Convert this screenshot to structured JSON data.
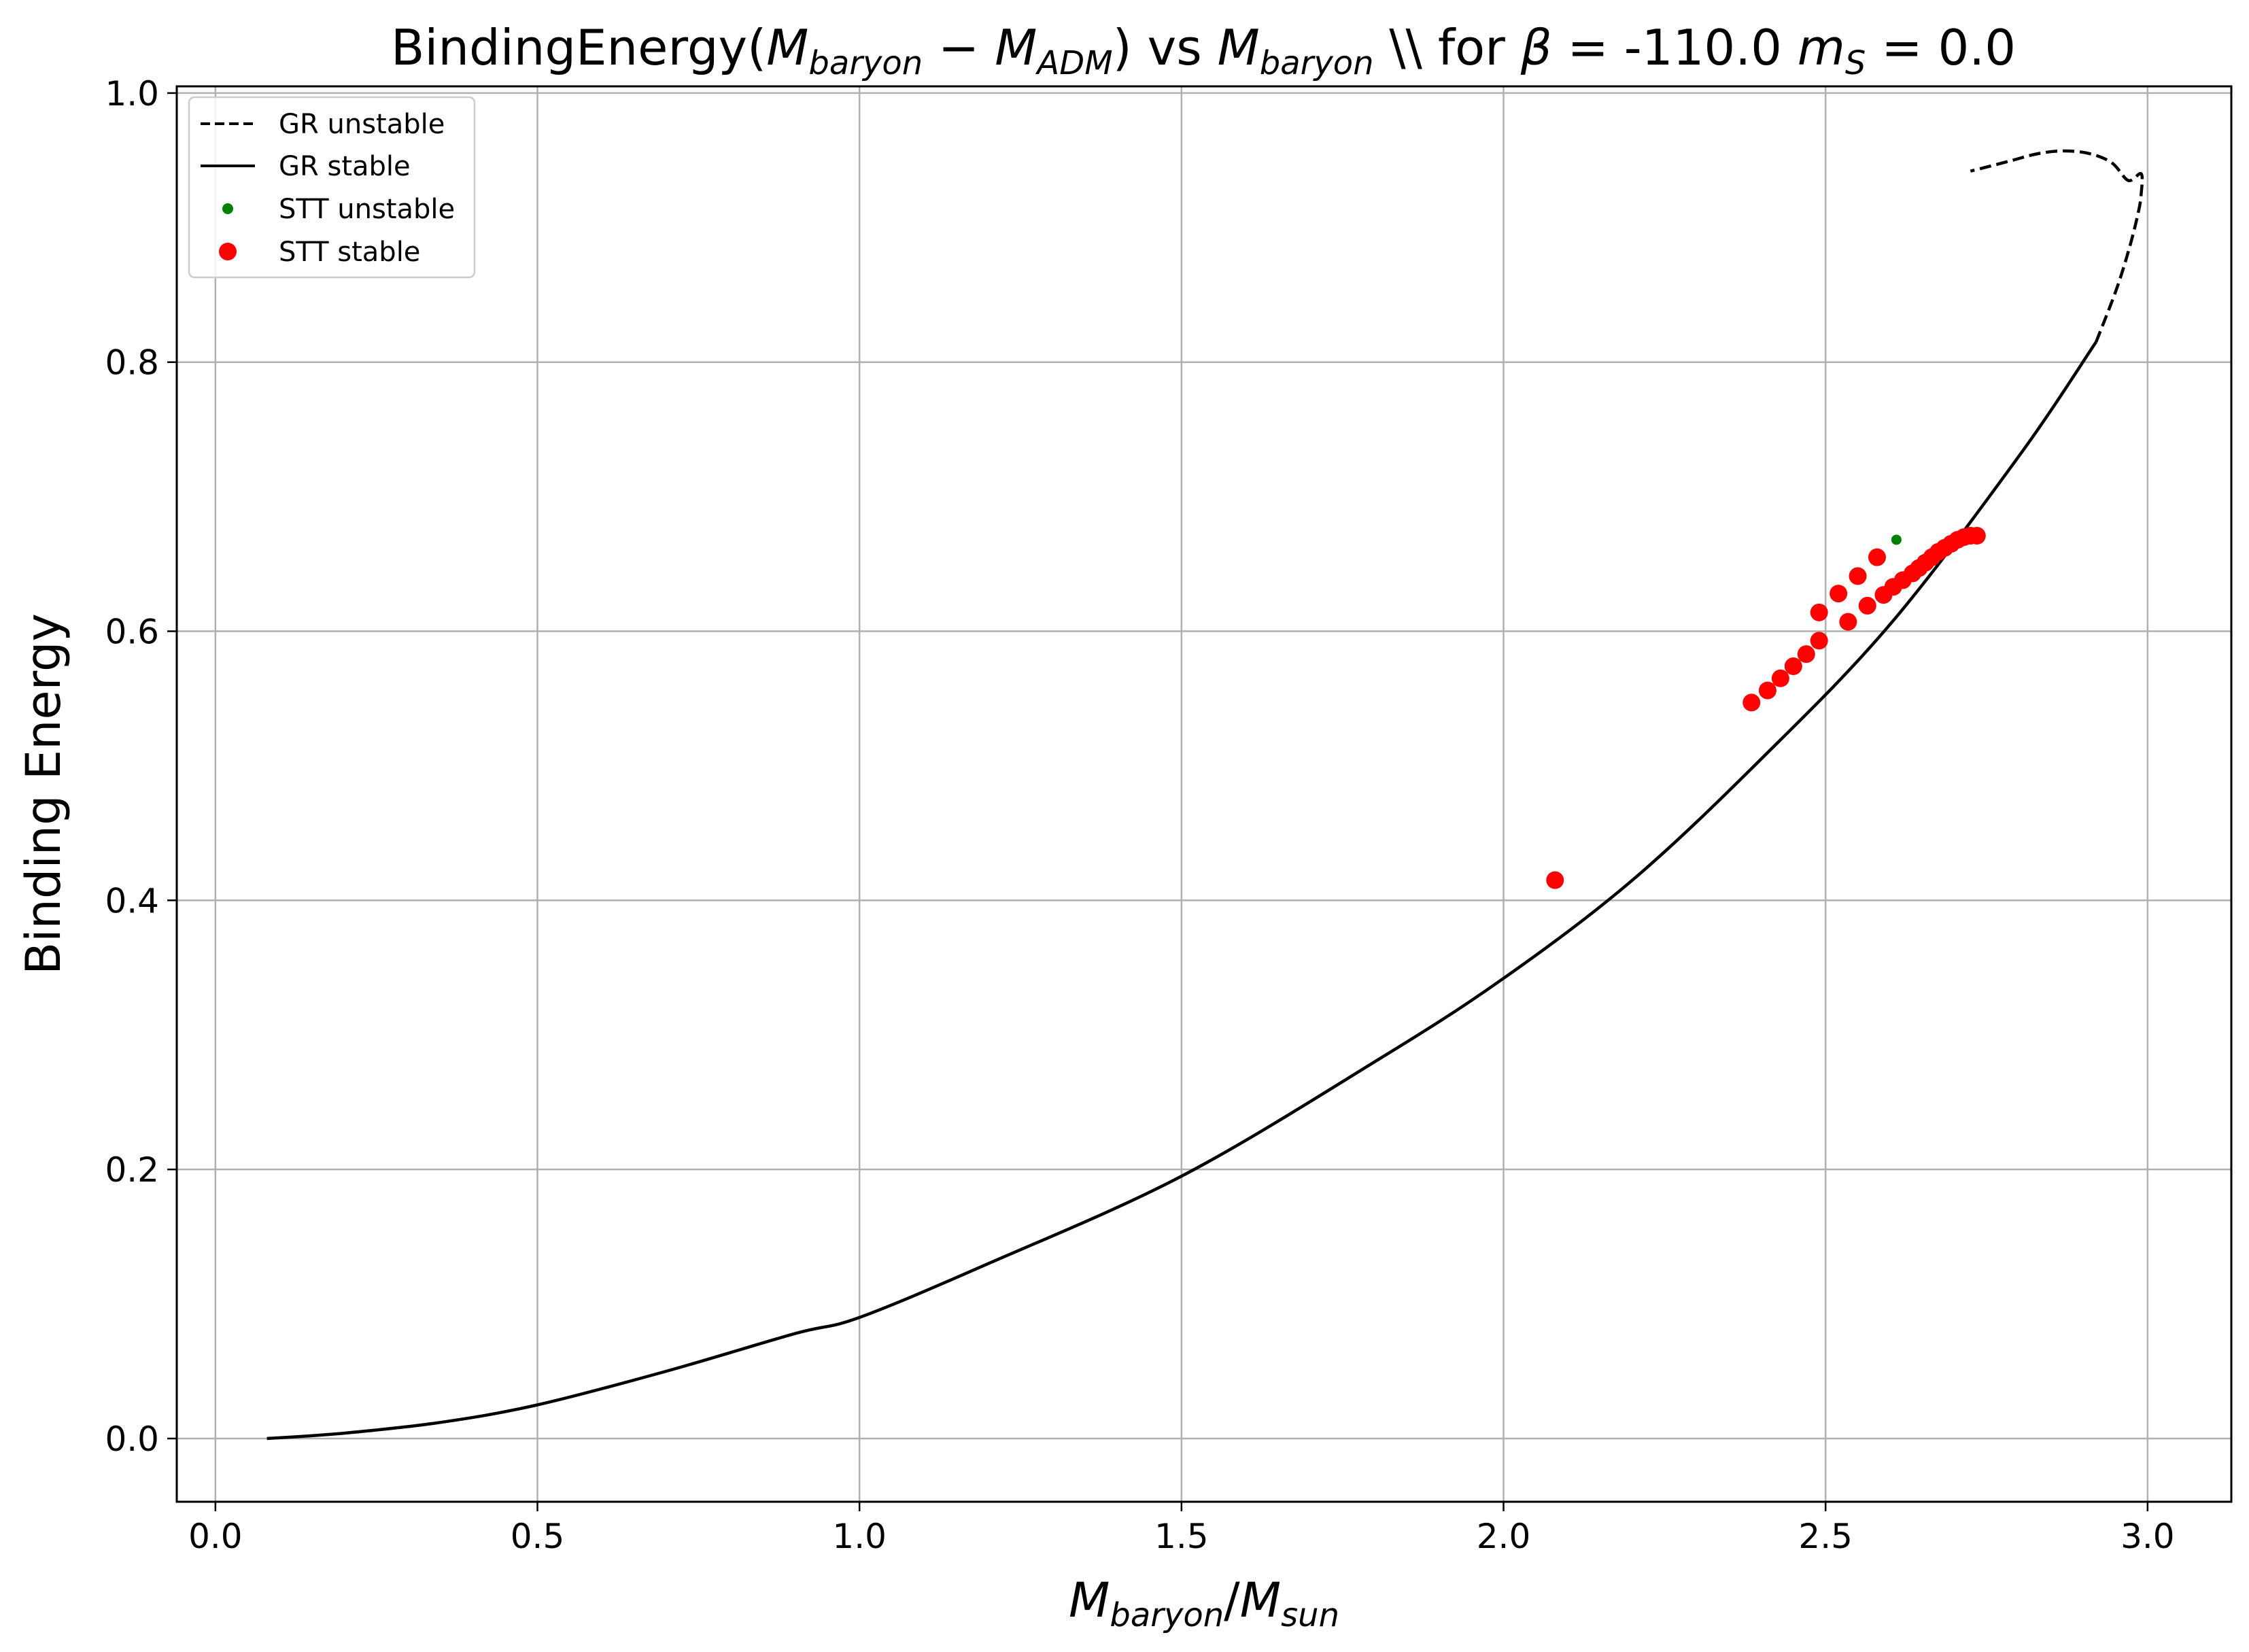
{
  "chart_data": {
    "type": "line",
    "title": {
      "prefix": "BindingEnergy(",
      "m1": "M",
      "m1_sub": "baryon",
      "minus": " − ",
      "m2": "M",
      "m2_sub": "ADM",
      "mid": ") vs ",
      "m3": "M",
      "m3_sub": "baryon",
      "for_text": " \\\\ for ",
      "beta": "β",
      "eq1": " = ",
      "beta_value": "-110.0 ",
      "ms": "m",
      "ms_sub": "S",
      "eq2": " = ",
      "ms_value": "0.0"
    },
    "xlabel": {
      "m1": "M",
      "m1_sub": "baryon",
      "slash": "/",
      "m2": "M",
      "m2_sub": "sun"
    },
    "ylabel": "Binding Energy",
    "xlim": [
      -0.06,
      3.13
    ],
    "ylim": [
      -0.047,
      1.005
    ],
    "xticks": [
      {
        "value": 0.0,
        "label": "0.0"
      },
      {
        "value": 0.5,
        "label": "0.5"
      },
      {
        "value": 1.0,
        "label": "1.0"
      },
      {
        "value": 1.5,
        "label": "1.5"
      },
      {
        "value": 2.0,
        "label": "2.0"
      },
      {
        "value": 2.5,
        "label": "2.5"
      },
      {
        "value": 3.0,
        "label": "3.0"
      }
    ],
    "yticks": [
      {
        "value": 0.0,
        "label": "0.0"
      },
      {
        "value": 0.2,
        "label": "0.2"
      },
      {
        "value": 0.4,
        "label": "0.4"
      },
      {
        "value": 0.6,
        "label": "0.6"
      },
      {
        "value": 0.8,
        "label": "0.8"
      },
      {
        "value": 1.0,
        "label": "1.0"
      }
    ],
    "grid": true,
    "legend_position": "top-left",
    "series": [
      {
        "name": "GR unstable",
        "style": "dashed",
        "color": "#000000",
        "x": [
          2.92,
          2.95,
          2.97,
          2.985,
          2.99,
          2.99,
          2.985,
          2.97,
          2.945,
          2.91,
          2.87,
          2.83,
          2.79,
          2.75,
          2.725
        ],
        "y": [
          0.815,
          0.852,
          0.882,
          0.91,
          0.925,
          0.94,
          0.9,
          0.935,
          0.948,
          0.955,
          0.957,
          0.955,
          0.95,
          0.945,
          0.942
        ]
      },
      {
        "name": "GR stable",
        "style": "solid",
        "color": "#000000",
        "x": [
          0.08,
          0.2,
          0.35,
          0.5,
          0.7,
          0.9,
          1.0,
          1.2,
          1.5,
          1.8,
          2.0,
          2.2,
          2.4,
          2.6,
          2.8,
          2.92
        ],
        "y": [
          0.0,
          0.004,
          0.012,
          0.025,
          0.05,
          0.078,
          0.09,
          0.13,
          0.195,
          0.28,
          0.342,
          0.415,
          0.505,
          0.605,
          0.73,
          0.815
        ]
      },
      {
        "name": "STT unstable",
        "style": "small-marker",
        "color": "#008000",
        "x": [
          2.61
        ],
        "y": [
          0.668
        ]
      },
      {
        "name": "STT stable",
        "style": "large-marker",
        "color": "#ff0000",
        "x": [
          2.08,
          2.385,
          2.41,
          2.43,
          2.45,
          2.47,
          2.49,
          2.49,
          2.52,
          2.535,
          2.55,
          2.565,
          2.58,
          2.59,
          2.605,
          2.62,
          2.635,
          2.645,
          2.655,
          2.665,
          2.675,
          2.685,
          2.695,
          2.705,
          2.715,
          2.725,
          2.735
        ],
        "y": [
          0.415,
          0.547,
          0.556,
          0.565,
          0.574,
          0.583,
          0.593,
          0.614,
          0.628,
          0.607,
          0.641,
          0.619,
          0.655,
          0.627,
          0.633,
          0.638,
          0.643,
          0.647,
          0.651,
          0.655,
          0.659,
          0.662,
          0.665,
          0.668,
          0.67,
          0.671,
          0.671
        ]
      }
    ]
  }
}
